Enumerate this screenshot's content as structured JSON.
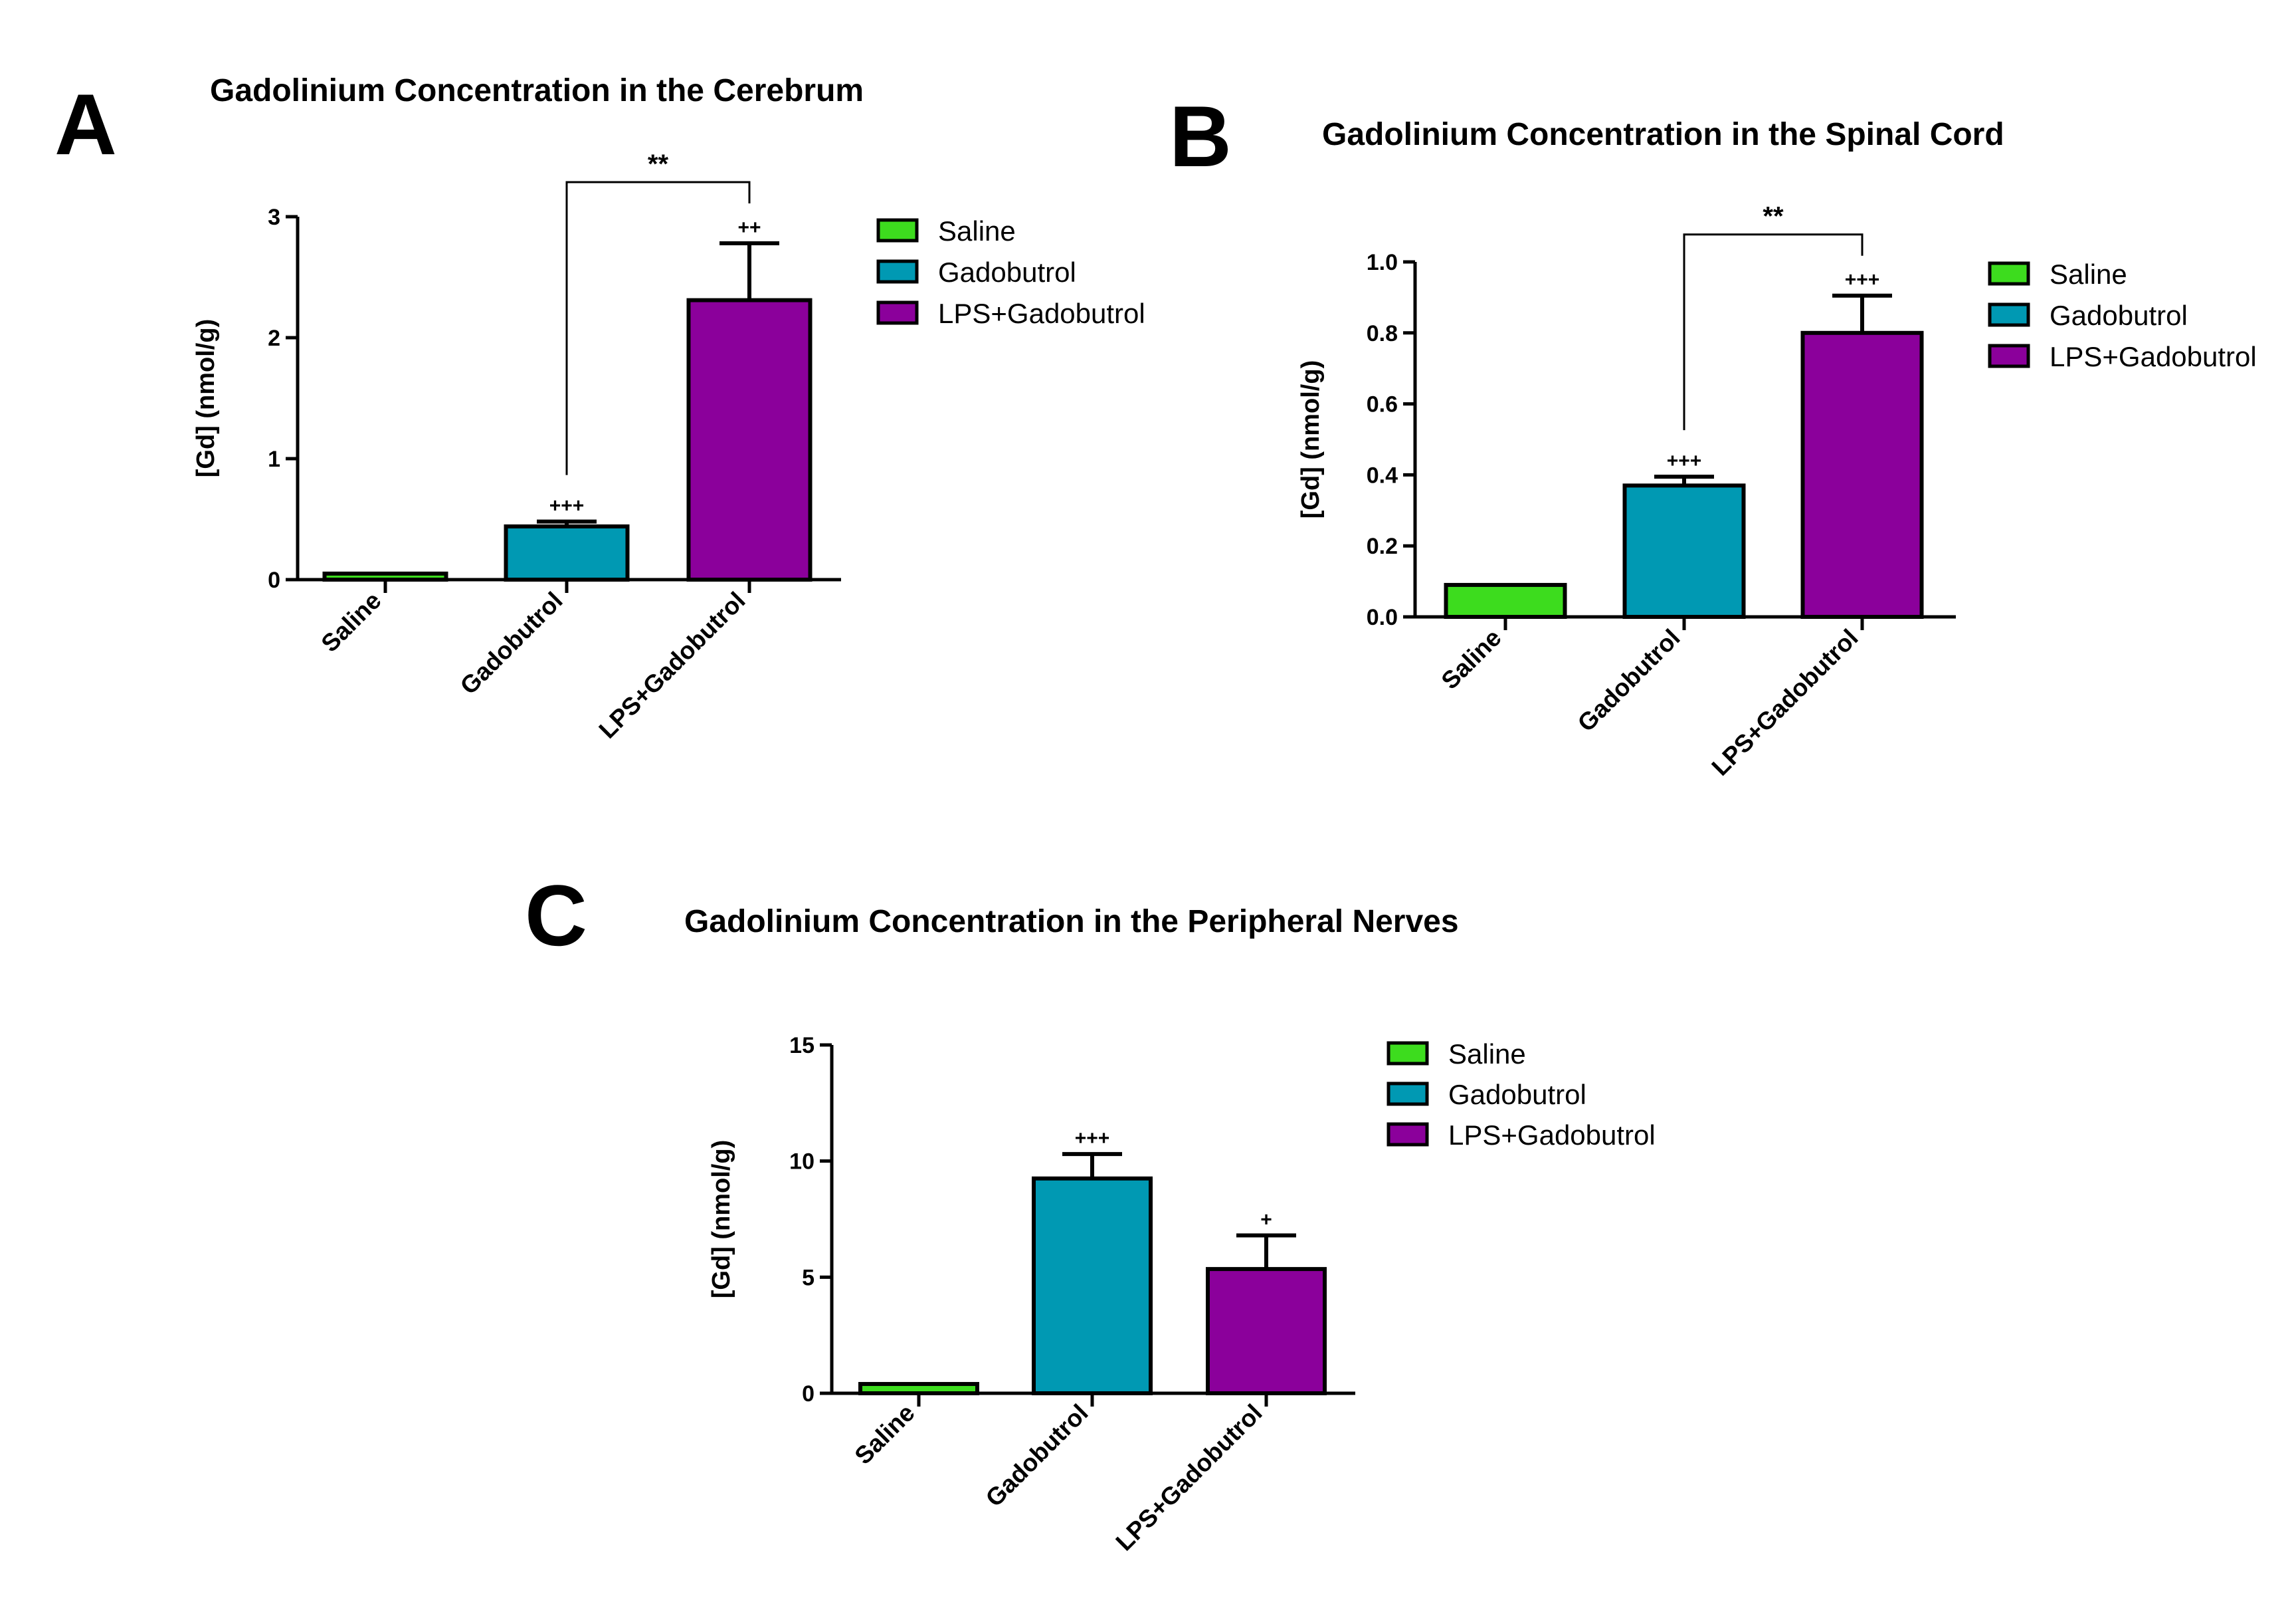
{
  "chart_data": [
    {
      "panel": "A",
      "type": "bar",
      "title": "Gadolinium Concentration in the Cerebrum",
      "ylabel": "[Gd] (nmol/g)",
      "xlabel": "",
      "ylim": [
        0,
        3
      ],
      "yticks": [
        "0",
        "1",
        "2",
        "3"
      ],
      "categories": [
        "Saline",
        "Gadobutrol",
        "LPS+Gadobutrol"
      ],
      "values": [
        0.05,
        0.44,
        2.31
      ],
      "errors": [
        0.0,
        0.04,
        0.47
      ],
      "significance": [
        "",
        "+++",
        "++"
      ],
      "bracket": {
        "from": 1,
        "to": 2,
        "label": "**"
      },
      "legend": [
        "Saline",
        "Gadobutrol",
        "LPS+Gadobutrol"
      ],
      "legend_position": "right"
    },
    {
      "panel": "B",
      "type": "bar",
      "title": "Gadolinium Concentration in the Spinal Cord",
      "ylabel": "[Gd] (nmol/g)",
      "xlabel": "",
      "ylim": [
        0,
        1.0
      ],
      "yticks": [
        "0.0",
        "0.2",
        "0.4",
        "0.6",
        "0.8",
        "1.0"
      ],
      "categories": [
        "Saline",
        "Gadobutrol",
        "LPS+Gadobutrol"
      ],
      "values": [
        0.09,
        0.37,
        0.8
      ],
      "errors": [
        0.0,
        0.025,
        0.105
      ],
      "significance": [
        "",
        "+++",
        "+++"
      ],
      "bracket": {
        "from": 1,
        "to": 2,
        "label": "**"
      },
      "legend": [
        "Saline",
        "Gadobutrol",
        "LPS+Gadobutrol"
      ],
      "legend_position": "right"
    },
    {
      "panel": "C",
      "type": "bar",
      "title": "Gadolinium Concentration in the Peripheral Nerves",
      "ylabel": "[Gd] (nmol/g)",
      "xlabel": "",
      "ylim": [
        0,
        15
      ],
      "yticks": [
        "0",
        "5",
        "10",
        "15"
      ],
      "categories": [
        "Saline",
        "Gadobutrol",
        "LPS+Gadobutrol"
      ],
      "values": [
        0.4,
        9.25,
        5.35
      ],
      "errors": [
        0.0,
        1.05,
        1.45
      ],
      "significance": [
        "",
        "+++",
        "+"
      ],
      "bracket": null,
      "legend": [
        "Saline",
        "Gadobutrol",
        "LPS+Gadobutrol"
      ],
      "legend_position": "right"
    }
  ],
  "colors": {
    "Saline": "#3ddc1e",
    "Gadobutrol": "#0099b3",
    "LPS+Gadobutrol": "#8b009b",
    "outline": "#000000"
  }
}
